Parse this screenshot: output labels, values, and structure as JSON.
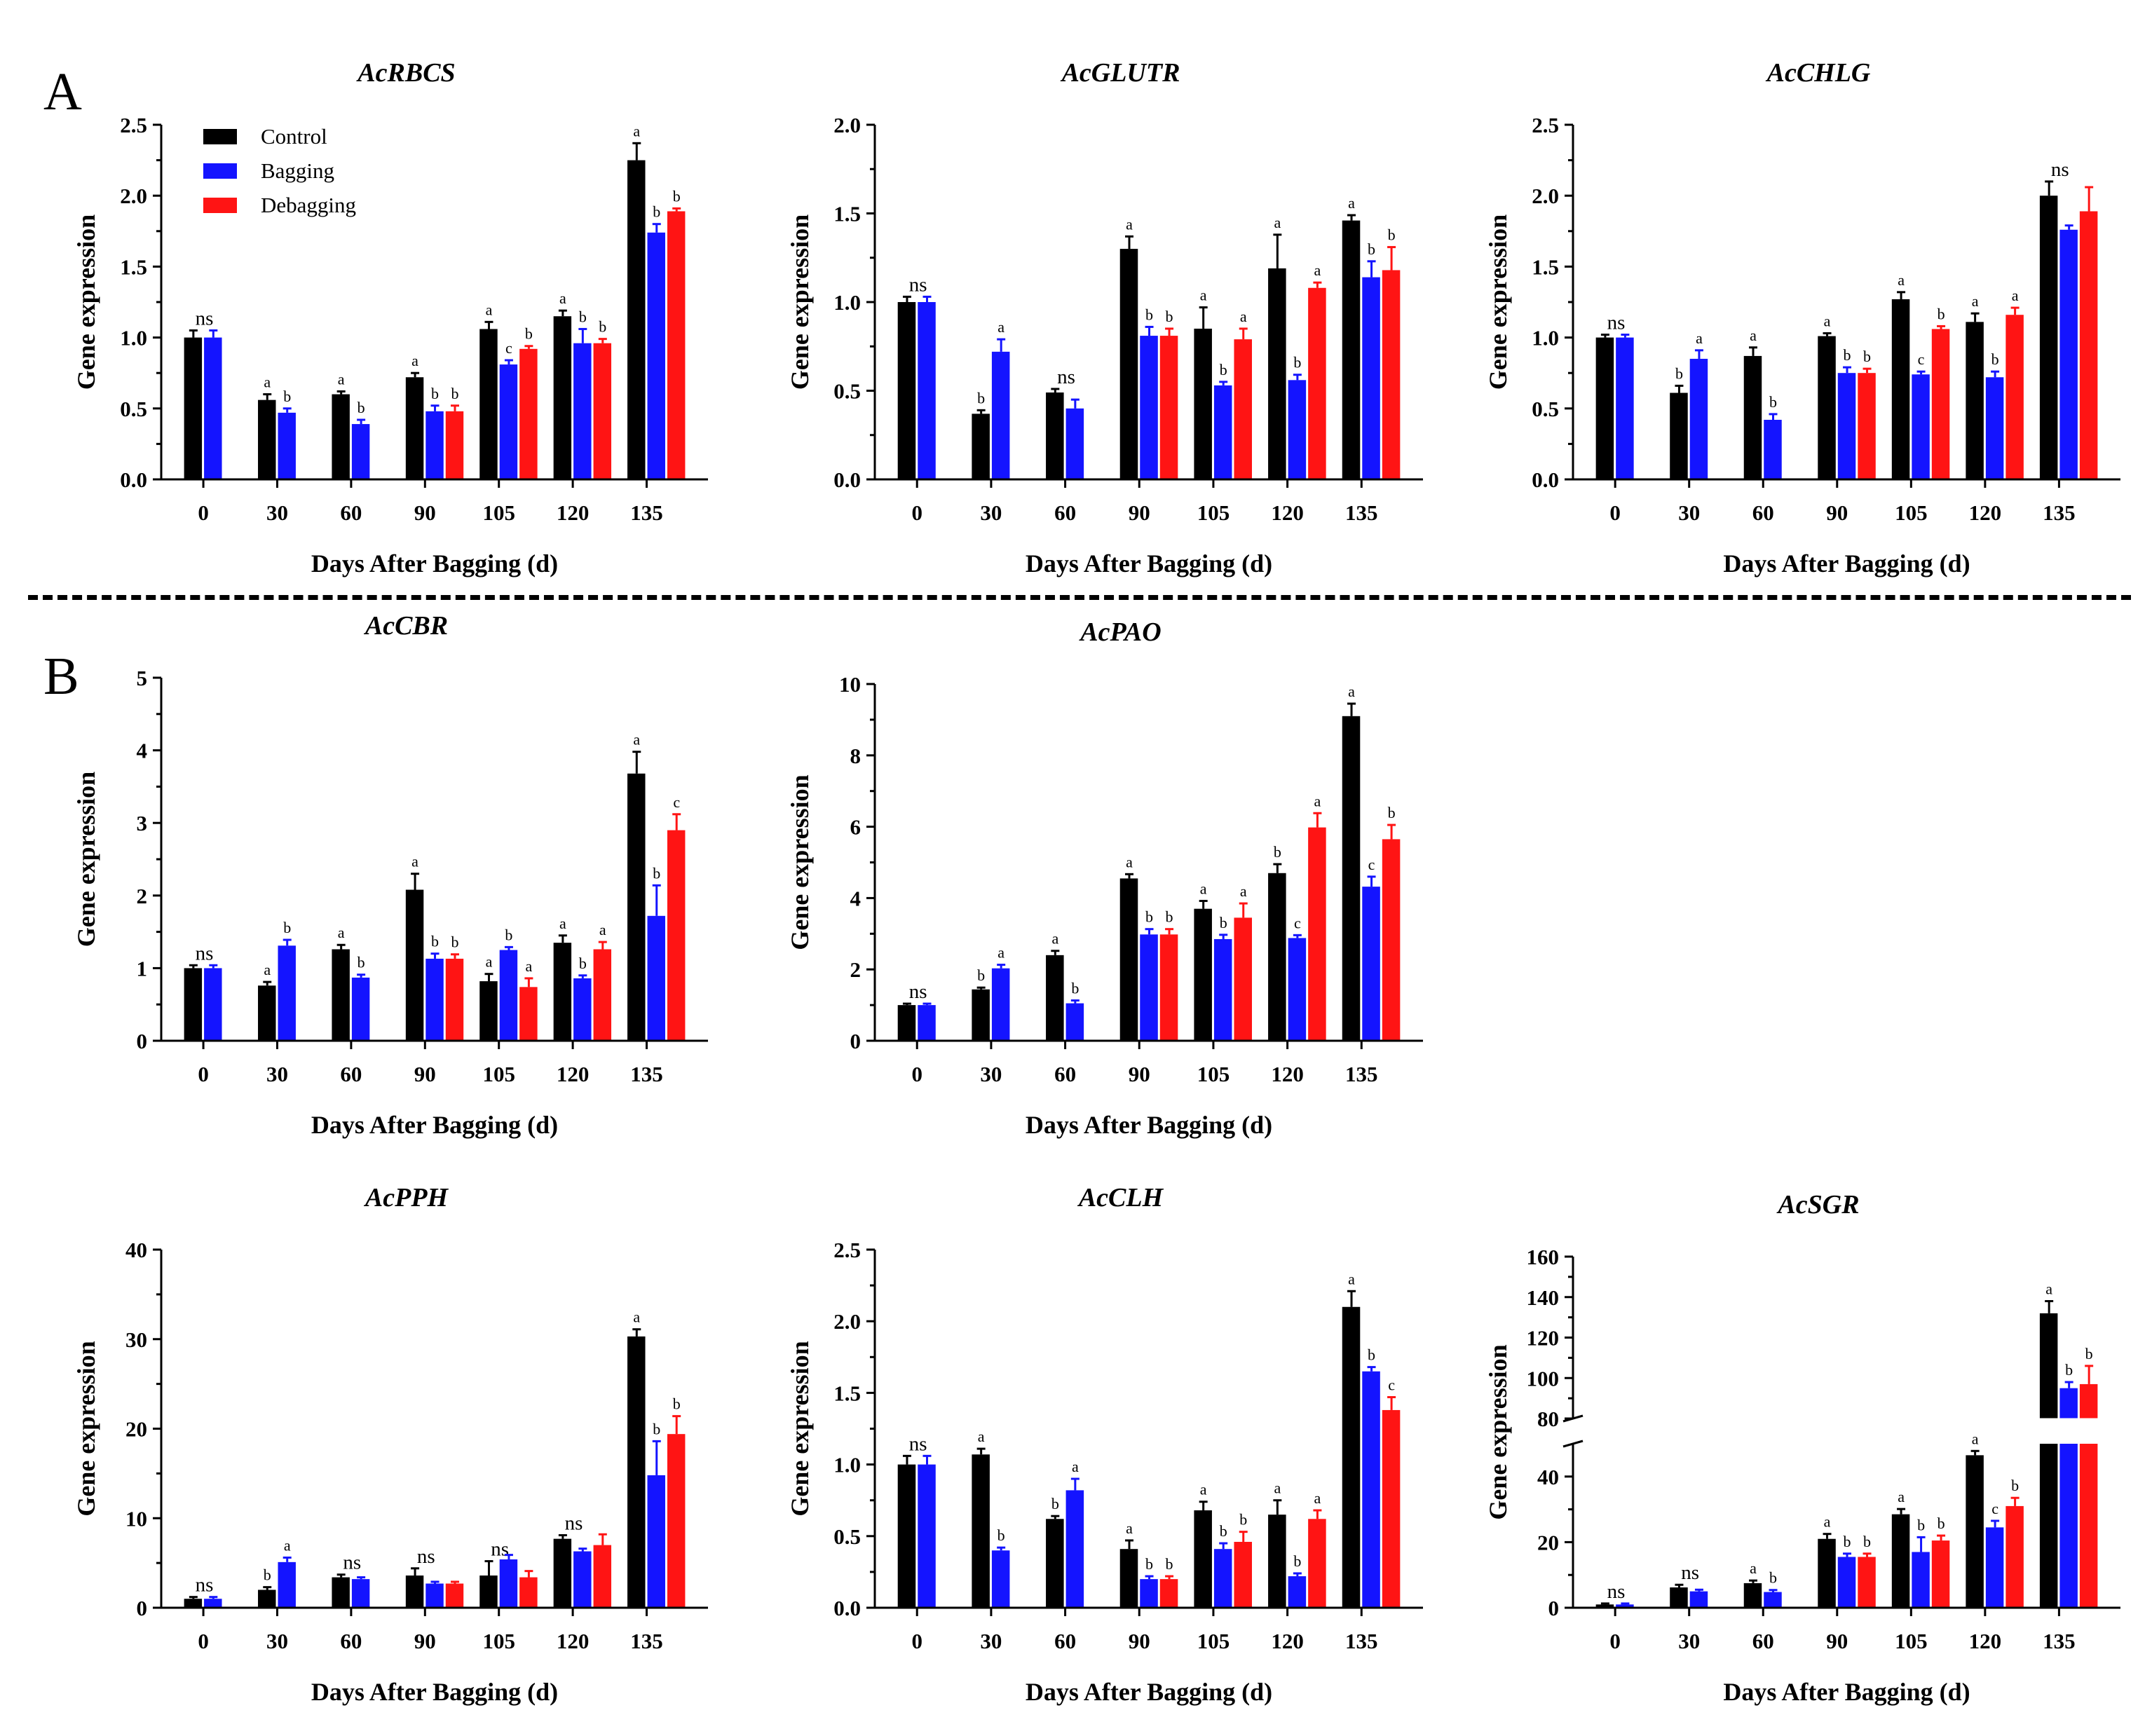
{
  "section_labels": {
    "a": "A",
    "b": "B"
  },
  "legend": [
    {
      "label": "Control",
      "color": "#000000"
    },
    {
      "label": "Bagging",
      "color": "#1414ff"
    },
    {
      "label": "Debagging",
      "color": "#ff1414"
    }
  ],
  "colors": {
    "control": "#000000",
    "bagging": "#1414ff",
    "debagging": "#ff1414"
  },
  "chart_data": [
    {
      "id": "rbcs",
      "type": "bar",
      "title": "AcRBCS",
      "xlabel": "Days After Bagging (d)",
      "ylabel": "Gene expression",
      "categories": [
        "0",
        "30",
        "60",
        "90",
        "105",
        "120",
        "135"
      ],
      "ylim": [
        0,
        2.5
      ],
      "yticks": [
        "0.0",
        "0.5",
        "1.0",
        "1.5",
        "2.0",
        "2.5"
      ],
      "ytick_values": [
        0,
        0.5,
        1.0,
        1.5,
        2.0,
        2.5
      ],
      "series": [
        {
          "name": "Control",
          "values": [
            1.0,
            0.56,
            0.6,
            0.72,
            1.06,
            1.15,
            2.25
          ],
          "errors": [
            0.05,
            0.04,
            0.02,
            0.03,
            0.05,
            0.04,
            0.12
          ],
          "labels": [
            "ns",
            "a",
            "a",
            "a",
            "a",
            "a",
            "a"
          ]
        },
        {
          "name": "Bagging",
          "values": [
            1.0,
            0.47,
            0.39,
            0.48,
            0.81,
            0.96,
            1.74
          ],
          "errors": [
            0.05,
            0.03,
            0.03,
            0.04,
            0.03,
            0.1,
            0.06
          ],
          "labels": [
            "",
            "b",
            "b",
            "b",
            "c",
            "b",
            "b"
          ]
        },
        {
          "name": "Debagging",
          "values": [
            null,
            null,
            null,
            0.48,
            0.92,
            0.96,
            1.89
          ],
          "errors": [
            null,
            null,
            null,
            0.04,
            0.02,
            0.03,
            0.02
          ],
          "labels": [
            "",
            "",
            "",
            "b",
            "b",
            "b",
            "b"
          ]
        }
      ]
    },
    {
      "id": "glutr",
      "type": "bar",
      "title": "AcGLUTR",
      "xlabel": "Days After Bagging (d)",
      "ylabel": "Gene expression",
      "categories": [
        "0",
        "30",
        "60",
        "90",
        "105",
        "120",
        "135"
      ],
      "ylim": [
        0,
        2.0
      ],
      "yticks": [
        "0.0",
        "0.5",
        "1.0",
        "1.5",
        "2.0"
      ],
      "ytick_values": [
        0,
        0.5,
        1.0,
        1.5,
        2.0
      ],
      "series": [
        {
          "name": "Control",
          "values": [
            1.0,
            0.37,
            0.49,
            1.3,
            0.85,
            1.19,
            1.46
          ],
          "errors": [
            0.03,
            0.02,
            0.02,
            0.07,
            0.12,
            0.19,
            0.03
          ],
          "labels": [
            "ns",
            "b",
            "ns",
            "a",
            "a",
            "a",
            "a"
          ]
        },
        {
          "name": "Bagging",
          "values": [
            1.0,
            0.72,
            0.4,
            0.81,
            0.53,
            0.56,
            1.14
          ],
          "errors": [
            0.03,
            0.07,
            0.05,
            0.05,
            0.02,
            0.03,
            0.09
          ],
          "labels": [
            "",
            "a",
            "",
            "b",
            "b",
            "b",
            "b"
          ]
        },
        {
          "name": "Debagging",
          "values": [
            null,
            null,
            null,
            0.81,
            0.79,
            1.08,
            1.18
          ],
          "errors": [
            null,
            null,
            null,
            0.04,
            0.06,
            0.03,
            0.13
          ],
          "labels": [
            "",
            "",
            "",
            "b",
            "a",
            "a",
            "b"
          ]
        }
      ]
    },
    {
      "id": "chlg",
      "type": "bar",
      "title": "AcCHLG",
      "xlabel": "Days After Bagging (d)",
      "ylabel": "Gene expression",
      "categories": [
        "0",
        "30",
        "60",
        "90",
        "105",
        "120",
        "135"
      ],
      "ylim": [
        0,
        2.5
      ],
      "yticks": [
        "0.0",
        "0.5",
        "1.0",
        "1.5",
        "2.0",
        "2.5"
      ],
      "ytick_values": [
        0,
        0.5,
        1.0,
        1.5,
        2.0,
        2.5
      ],
      "series": [
        {
          "name": "Control",
          "values": [
            1.0,
            0.61,
            0.87,
            1.01,
            1.27,
            1.11,
            2.0
          ],
          "errors": [
            0.02,
            0.05,
            0.06,
            0.02,
            0.05,
            0.06,
            0.1
          ],
          "labels": [
            "ns",
            "b",
            "a",
            "a",
            "a",
            "a",
            "ns"
          ]
        },
        {
          "name": "Bagging",
          "values": [
            1.0,
            0.85,
            0.42,
            0.75,
            0.74,
            0.72,
            1.76
          ],
          "errors": [
            0.02,
            0.06,
            0.04,
            0.04,
            0.02,
            0.04,
            0.03
          ],
          "labels": [
            "",
            "a",
            "b",
            "b",
            "c",
            "b",
            ""
          ]
        },
        {
          "name": "Debagging",
          "values": [
            null,
            null,
            null,
            0.75,
            1.06,
            1.16,
            1.89
          ],
          "errors": [
            null,
            null,
            null,
            0.03,
            0.02,
            0.05,
            0.17
          ],
          "labels": [
            "",
            "",
            "",
            "b",
            "b",
            "a",
            ""
          ]
        }
      ]
    },
    {
      "id": "cbr",
      "type": "bar",
      "title": "AcCBR",
      "xlabel": "Days After Bagging (d)",
      "ylabel": "Gene expression",
      "categories": [
        "0",
        "30",
        "60",
        "90",
        "105",
        "120",
        "135"
      ],
      "ylim": [
        0,
        5
      ],
      "yticks": [
        "0",
        "1",
        "2",
        "3",
        "4",
        "5"
      ],
      "ytick_values": [
        0,
        1,
        2,
        3,
        4,
        5
      ],
      "series": [
        {
          "name": "Control",
          "values": [
            1.0,
            0.76,
            1.26,
            2.08,
            0.82,
            1.35,
            3.68
          ],
          "errors": [
            0.04,
            0.05,
            0.06,
            0.22,
            0.1,
            0.1,
            0.3
          ],
          "labels": [
            "ns",
            "a",
            "a",
            "a",
            "a",
            "a",
            "a"
          ]
        },
        {
          "name": "Bagging",
          "values": [
            1.0,
            1.31,
            0.87,
            1.13,
            1.25,
            0.86,
            1.72
          ],
          "errors": [
            0.04,
            0.08,
            0.04,
            0.07,
            0.04,
            0.04,
            0.42
          ],
          "labels": [
            "",
            "b",
            "b",
            "b",
            "b",
            "b",
            "b"
          ]
        },
        {
          "name": "Debagging",
          "values": [
            null,
            null,
            null,
            1.13,
            0.74,
            1.26,
            2.9
          ],
          "errors": [
            null,
            null,
            null,
            0.06,
            0.12,
            0.1,
            0.22
          ],
          "labels": [
            "",
            "",
            "",
            "b",
            "a",
            "a",
            "c"
          ]
        }
      ]
    },
    {
      "id": "pao",
      "type": "bar",
      "title": "AcPAO",
      "xlabel": "Days After Bagging (d)",
      "ylabel": "Gene expression",
      "categories": [
        "0",
        "30",
        "60",
        "90",
        "105",
        "120",
        "135"
      ],
      "ylim": [
        0,
        10
      ],
      "yticks": [
        "0",
        "2",
        "4",
        "6",
        "8",
        "10"
      ],
      "ytick_values": [
        0,
        2,
        4,
        6,
        8,
        10
      ],
      "series": [
        {
          "name": "Control",
          "values": [
            1.0,
            1.44,
            2.4,
            4.55,
            3.7,
            4.7,
            9.1
          ],
          "errors": [
            0.04,
            0.05,
            0.12,
            0.12,
            0.22,
            0.25,
            0.35
          ],
          "labels": [
            "ns",
            "b",
            "a",
            "a",
            "a",
            "b",
            "a"
          ]
        },
        {
          "name": "Bagging",
          "values": [
            1.0,
            2.03,
            1.05,
            2.98,
            2.85,
            2.88,
            4.32
          ],
          "errors": [
            0.04,
            0.1,
            0.08,
            0.15,
            0.12,
            0.08,
            0.28
          ],
          "labels": [
            "",
            "a",
            "b",
            "b",
            "b",
            "c",
            "c"
          ]
        },
        {
          "name": "Debagging",
          "values": [
            null,
            null,
            null,
            2.98,
            3.45,
            5.98,
            5.65
          ],
          "errors": [
            null,
            null,
            null,
            0.15,
            0.4,
            0.4,
            0.4
          ],
          "labels": [
            "",
            "",
            "",
            "b",
            "a",
            "a",
            "b"
          ]
        }
      ]
    },
    {
      "id": "pph",
      "type": "bar",
      "title": "AcPPH",
      "xlabel": "Days After Bagging (d)",
      "ylabel": "Gene expression",
      "categories": [
        "0",
        "30",
        "60",
        "90",
        "105",
        "120",
        "135"
      ],
      "ylim": [
        0,
        40
      ],
      "yticks": [
        "0",
        "10",
        "20",
        "30",
        "40"
      ],
      "ytick_values": [
        0,
        10,
        20,
        30,
        40
      ],
      "series": [
        {
          "name": "Control",
          "values": [
            1.0,
            2.0,
            3.4,
            3.6,
            3.6,
            7.7,
            30.3
          ],
          "errors": [
            0.2,
            0.3,
            0.3,
            0.8,
            1.6,
            0.4,
            0.8
          ],
          "labels": [
            "ns",
            "b",
            "ns",
            "ns",
            "ns",
            "ns",
            "a"
          ]
        },
        {
          "name": "Bagging",
          "values": [
            1.0,
            5.1,
            3.2,
            2.7,
            5.4,
            6.3,
            14.8
          ],
          "errors": [
            0.2,
            0.5,
            0.2,
            0.2,
            0.5,
            0.3,
            3.8
          ],
          "labels": [
            "",
            "a",
            "",
            "",
            "",
            "",
            "b"
          ]
        },
        {
          "name": "Debagging",
          "values": [
            null,
            null,
            null,
            2.7,
            3.4,
            7.0,
            19.4
          ],
          "errors": [
            null,
            null,
            null,
            0.2,
            0.7,
            1.2,
            2.0
          ],
          "labels": [
            "",
            "",
            "",
            "",
            "",
            "",
            "b"
          ]
        }
      ]
    },
    {
      "id": "clh",
      "type": "bar",
      "title": "AcCLH",
      "xlabel": "Days After Bagging (d)",
      "ylabel": "Gene expression",
      "categories": [
        "0",
        "30",
        "60",
        "90",
        "105",
        "120",
        "135"
      ],
      "ylim": [
        0,
        2.5
      ],
      "yticks": [
        "0.0",
        "0.5",
        "1.0",
        "1.5",
        "2.0",
        "2.5"
      ],
      "ytick_values": [
        0,
        0.5,
        1.0,
        1.5,
        2.0,
        2.5
      ],
      "series": [
        {
          "name": "Control",
          "values": [
            1.0,
            1.07,
            0.62,
            0.41,
            0.68,
            0.65,
            2.1
          ],
          "errors": [
            0.06,
            0.04,
            0.02,
            0.06,
            0.06,
            0.1,
            0.11
          ],
          "labels": [
            "ns",
            "a",
            "b",
            "a",
            "a",
            "a",
            "a"
          ]
        },
        {
          "name": "Bagging",
          "values": [
            1.0,
            0.4,
            0.82,
            0.2,
            0.41,
            0.22,
            1.65
          ],
          "errors": [
            0.06,
            0.02,
            0.08,
            0.02,
            0.04,
            0.02,
            0.03
          ],
          "labels": [
            "",
            "b",
            "a",
            "b",
            "b",
            "b",
            "b"
          ]
        },
        {
          "name": "Debagging",
          "values": [
            null,
            null,
            null,
            0.2,
            0.46,
            0.62,
            1.38
          ],
          "errors": [
            null,
            null,
            null,
            0.02,
            0.07,
            0.06,
            0.09
          ],
          "labels": [
            "",
            "",
            "",
            "b",
            "b",
            "a",
            "c"
          ]
        }
      ]
    },
    {
      "id": "sgr",
      "type": "bar",
      "title": "AcSGR",
      "xlabel": "Days After Bagging (d)",
      "ylabel": "Gene expression",
      "categories": [
        "0",
        "30",
        "60",
        "90",
        "105",
        "120",
        "135"
      ],
      "ylim": [
        0,
        160
      ],
      "axis_break": [
        50,
        80
      ],
      "yticks": [
        "0",
        "20",
        "40",
        "80",
        "100",
        "120",
        "140",
        "160"
      ],
      "ytick_values": [
        0,
        20,
        40,
        80,
        100,
        120,
        140,
        160
      ],
      "series": [
        {
          "name": "Control",
          "values": [
            1.0,
            6.2,
            7.5,
            21.0,
            28.5,
            46.5,
            132.0
          ],
          "errors": [
            0.3,
            0.8,
            0.8,
            1.5,
            1.6,
            1.3,
            6.0
          ],
          "labels": [
            "ns",
            "ns",
            "a",
            "a",
            "a",
            "a",
            "a"
          ]
        },
        {
          "name": "Bagging",
          "values": [
            1.0,
            5.0,
            4.8,
            15.5,
            17.0,
            24.5,
            95.0
          ],
          "errors": [
            0.3,
            0.5,
            0.6,
            1.0,
            4.5,
            2.0,
            3.0
          ],
          "labels": [
            "",
            "",
            "b",
            "b",
            "b",
            "c",
            "b"
          ]
        },
        {
          "name": "Debagging",
          "values": [
            null,
            null,
            null,
            15.5,
            20.5,
            31.0,
            97.0
          ],
          "errors": [
            null,
            null,
            null,
            1.0,
            1.5,
            2.5,
            9.0
          ],
          "labels": [
            "",
            "",
            "",
            "b",
            "b",
            "b",
            "b"
          ]
        }
      ]
    }
  ]
}
